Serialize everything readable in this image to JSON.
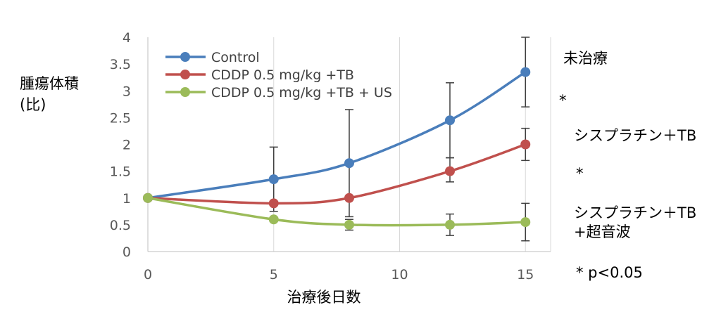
{
  "chart_data": {
    "type": "line",
    "ylabel": "腫瘍体積\n(比)",
    "xlabel": "治療後日数",
    "x": [
      0,
      5,
      8,
      12,
      15
    ],
    "xlim": [
      0,
      16
    ],
    "ylim": [
      0,
      4
    ],
    "xticks": [
      0,
      5,
      10,
      15
    ],
    "yticks": [
      0,
      0.5,
      1,
      1.5,
      2,
      2.5,
      3,
      3.5,
      4
    ],
    "grid": "vertical",
    "legend_position": "top-left",
    "series": [
      {
        "name": "Control",
        "color": "#4a7ebb",
        "values": [
          1,
          1.35,
          1.65,
          2.45,
          3.35
        ],
        "err_low": [
          1,
          0.75,
          0.65,
          1.75,
          2.7
        ],
        "err_high": [
          1,
          1.95,
          2.65,
          3.15,
          4.0
        ]
      },
      {
        "name": "CDDP 0.5 mg/kg +TB",
        "color": "#c0504d",
        "values": [
          1,
          0.9,
          1.0,
          1.5,
          2.0
        ],
        "err_low": [
          1,
          0.9,
          1.0,
          1.3,
          1.7
        ],
        "err_high": [
          1,
          0.9,
          1.0,
          1.75,
          2.3
        ]
      },
      {
        "name": "CDDP 0.5 mg/kg +TB + US",
        "color": "#9bbb59",
        "values": [
          1,
          0.6,
          0.5,
          0.5,
          0.55
        ],
        "err_low": [
          1,
          0.6,
          0.4,
          0.3,
          0.2
        ],
        "err_high": [
          1,
          0.6,
          0.6,
          0.7,
          0.9
        ]
      }
    ]
  },
  "annotations": {
    "untreated": "未治療",
    "star1": "*",
    "cisplatin_tb": "シスプラチン＋TB",
    "star2": "*",
    "cisplatin_tb_us_line1": "シスプラチン＋TB",
    "cisplatin_tb_us_line2": "+超音波",
    "pvalue": "*  p<0.05"
  }
}
